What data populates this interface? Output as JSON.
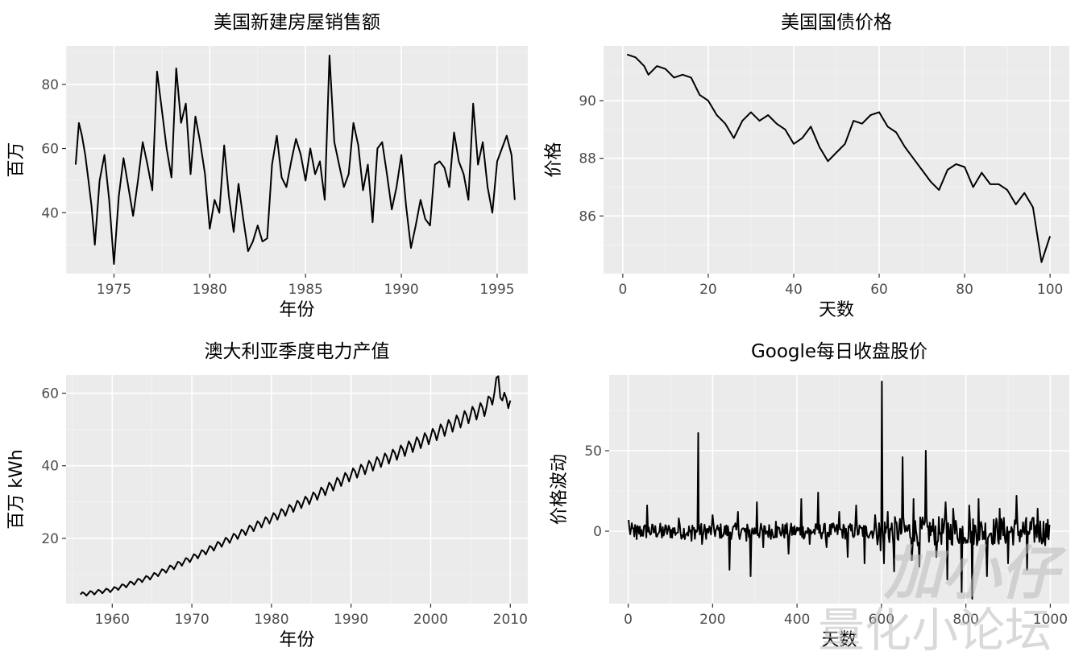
{
  "chart_data": [
    {
      "type": "line",
      "title": "美国新建房屋销售额",
      "xlabel": "年份",
      "ylabel": "百万",
      "xlim": [
        1972.5,
        1996.6
      ],
      "ylim": [
        21,
        92
      ],
      "x_ticks": [
        1975,
        1980,
        1985,
        1990,
        1995
      ],
      "x_tick_labels": [
        "1975",
        "1980",
        "1985",
        "1990",
        "1995"
      ],
      "y_ticks": [
        40,
        60,
        80
      ],
      "y_tick_labels": [
        "40",
        "60",
        "80"
      ],
      "grid": true,
      "series": [
        {
          "x": [
            1973.0,
            1973.17,
            1973.33,
            1973.5,
            1973.67,
            1973.83,
            1974.0,
            1974.25,
            1974.5,
            1974.75,
            1975.0,
            1975.25,
            1975.5,
            1975.75,
            1976.0,
            1976.25,
            1976.5,
            1976.75,
            1977.0,
            1977.25,
            1977.5,
            1977.75,
            1978.0,
            1978.25,
            1978.5,
            1978.75,
            1979.0,
            1979.25,
            1979.5,
            1979.75,
            1980.0,
            1980.25,
            1980.5,
            1980.75,
            1981.0,
            1981.25,
            1981.5,
            1981.75,
            1982.0,
            1982.25,
            1982.5,
            1982.75,
            1983.0,
            1983.25,
            1983.5,
            1983.75,
            1984.0,
            1984.25,
            1984.5,
            1984.75,
            1985.0,
            1985.25,
            1985.5,
            1985.75,
            1986.0,
            1986.25,
            1986.5,
            1986.75,
            1987.0,
            1987.25,
            1987.5,
            1987.75,
            1988.0,
            1988.25,
            1988.5,
            1988.75,
            1989.0,
            1989.25,
            1989.5,
            1989.75,
            1990.0,
            1990.25,
            1990.5,
            1990.75,
            1991.0,
            1991.25,
            1991.5,
            1991.75,
            1992.0,
            1992.25,
            1992.5,
            1992.75,
            1993.0,
            1993.25,
            1993.5,
            1993.75,
            1994.0,
            1994.25,
            1994.5,
            1994.75,
            1995.0,
            1995.25,
            1995.5,
            1995.75,
            1995.92
          ],
          "values": [
            55,
            68,
            64,
            58,
            50,
            42,
            30,
            50,
            58,
            44,
            24,
            45,
            57,
            48,
            39,
            50,
            62,
            55,
            47,
            84,
            72,
            60,
            51,
            85,
            68,
            74,
            52,
            70,
            62,
            52,
            35,
            44,
            40,
            61,
            45,
            34,
            49,
            38,
            28,
            31,
            36,
            31,
            32,
            55,
            64,
            51,
            48,
            56,
            63,
            58,
            50,
            60,
            52,
            56,
            44,
            89,
            62,
            55,
            48,
            52,
            68,
            61,
            47,
            55,
            37,
            60,
            62,
            52,
            41,
            48,
            58,
            42,
            29,
            36,
            44,
            38,
            36,
            55,
            56,
            54,
            48,
            65,
            56,
            52,
            44,
            74,
            55,
            62,
            48,
            40,
            56,
            60,
            64,
            58,
            44
          ]
        }
      ]
    },
    {
      "type": "line",
      "title": "美国国债价格",
      "xlabel": "天数",
      "ylabel": "价格",
      "xlim": [
        -4.5,
        104.5
      ],
      "ylim": [
        84.0,
        91.9
      ],
      "x_ticks": [
        0,
        20,
        40,
        60,
        80,
        100
      ],
      "x_tick_labels": [
        "0",
        "20",
        "40",
        "60",
        "80",
        "100"
      ],
      "y_ticks": [
        86,
        88,
        90
      ],
      "y_tick_labels": [
        "86",
        "88",
        "90"
      ],
      "grid": true,
      "series": [
        {
          "x": [
            1,
            3,
            5,
            6,
            8,
            10,
            12,
            14,
            16,
            18,
            20,
            22,
            24,
            26,
            28,
            30,
            32,
            34,
            36,
            38,
            40,
            42,
            44,
            46,
            48,
            50,
            52,
            54,
            56,
            58,
            60,
            62,
            64,
            66,
            68,
            70,
            72,
            74,
            76,
            78,
            80,
            82,
            84,
            86,
            88,
            90,
            92,
            94,
            96,
            98,
            100
          ],
          "values": [
            91.6,
            91.5,
            91.2,
            90.9,
            91.2,
            91.1,
            90.8,
            90.9,
            90.8,
            90.2,
            90.0,
            89.5,
            89.2,
            88.7,
            89.3,
            89.6,
            89.3,
            89.5,
            89.2,
            89.0,
            88.5,
            88.7,
            89.1,
            88.4,
            87.9,
            88.2,
            88.5,
            89.3,
            89.2,
            89.5,
            89.6,
            89.1,
            88.9,
            88.4,
            88.0,
            87.6,
            87.2,
            86.9,
            87.6,
            87.8,
            87.7,
            87.0,
            87.5,
            87.1,
            87.1,
            86.9,
            86.4,
            86.8,
            86.3,
            84.4,
            85.3
          ]
        }
      ]
    },
    {
      "type": "line",
      "title": "澳大利亚季度电力产值",
      "xlabel": "年份",
      "ylabel": "百万 kWh",
      "xlim": [
        1954.2,
        2012.2
      ],
      "ylim": [
        2,
        65
      ],
      "x_ticks": [
        1960,
        1970,
        1980,
        1990,
        2000,
        2010
      ],
      "x_tick_labels": [
        "1960",
        "1970",
        "1980",
        "1990",
        "2000",
        "2010"
      ],
      "y_ticks": [
        20,
        40,
        60
      ],
      "y_tick_labels": [
        "20",
        "40",
        "60"
      ],
      "grid": true,
      "series": [
        {
          "x": [
            1956,
            1960,
            1965,
            1970,
            1975,
            1980,
            1985,
            1990,
            1995,
            2000,
            2005,
            2007,
            2008,
            2008.5,
            2009,
            2010
          ],
          "values": [
            4.5,
            5.8,
            9.5,
            14.5,
            20,
            25.5,
            31,
            37.5,
            42.5,
            48,
            54,
            56,
            60,
            64,
            58,
            58
          ]
        }
      ]
    },
    {
      "type": "line",
      "title": "Google每日收盘股价",
      "xlabel": "天数",
      "ylabel": "价格波动",
      "xlim": [
        -45,
        1045
      ],
      "ylim": [
        -45,
        97
      ],
      "x_ticks": [
        0,
        200,
        400,
        600,
        800,
        1000
      ],
      "x_tick_labels": [
        "0",
        "200",
        "400",
        "600",
        "800",
        "1000"
      ],
      "y_ticks": [
        0,
        50
      ],
      "y_tick_labels": [
        "0",
        "50"
      ],
      "grid": true,
      "series": [
        {
          "x": [
            1,
            20,
            45,
            80,
            120,
            150,
            166,
            168,
            175,
            200,
            225,
            240,
            260,
            280,
            290,
            305,
            320,
            350,
            380,
            410,
            430,
            450,
            470,
            500,
            520,
            540,
            560,
            585,
            598,
            601,
            606,
            615,
            630,
            650,
            672,
            676,
            690,
            705,
            730,
            752,
            756,
            770,
            790,
            808,
            815,
            830,
            850,
            880,
            900,
            920,
            945,
            970,
            998
          ],
          "values": [
            7,
            -5,
            16,
            -4,
            8,
            -6,
            61,
            4,
            -8,
            10,
            -3,
            -24,
            12,
            -6,
            -28,
            18,
            -10,
            6,
            -14,
            20,
            -8,
            24,
            -10,
            12,
            -16,
            16,
            -20,
            10,
            -12,
            93,
            -20,
            12,
            -25,
            46,
            -18,
            20,
            -22,
            50,
            -16,
            18,
            -30,
            14,
            -38,
            16,
            -42,
            20,
            -28,
            14,
            -20,
            22,
            -24,
            14,
            4
          ]
        }
      ]
    }
  ],
  "watermark": {
    "line1": "加小仔",
    "line2": "量化小论坛",
    "color": "#b9b9b9"
  }
}
